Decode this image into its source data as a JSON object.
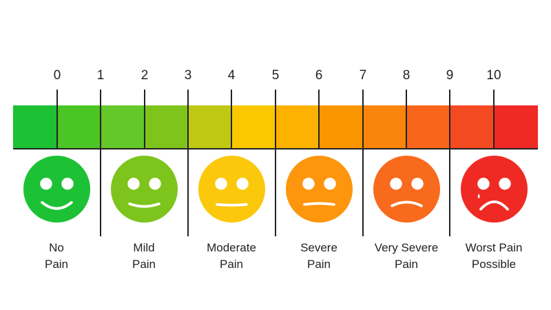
{
  "scale": {
    "ticks": [
      "0",
      "1",
      "2",
      "3",
      "4",
      "5",
      "6",
      "7",
      "8",
      "9",
      "10"
    ],
    "segment_colors": [
      "#1cc134",
      "#4bc524",
      "#64c72a",
      "#7fc41a",
      "#bfc813",
      "#fbc800",
      "#fdb100",
      "#fb9500",
      "#fb840d",
      "#f8651b",
      "#f44a21",
      "#ef2a24"
    ]
  },
  "faces": [
    {
      "id": "no-pain",
      "color": "#1dc135",
      "mood": "happy",
      "label_line1": "No",
      "label_line2": "Pain"
    },
    {
      "id": "mild-pain",
      "color": "#7dc41c",
      "mood": "smile",
      "label_line1": "Mild",
      "label_line2": "Pain"
    },
    {
      "id": "moderate-pain",
      "color": "#fbc80b",
      "mood": "neutral",
      "label_line1": "Moderate",
      "label_line2": "Pain"
    },
    {
      "id": "severe-pain",
      "color": "#fd960c",
      "mood": "neutral-down",
      "label_line1": "Severe",
      "label_line2": "Pain"
    },
    {
      "id": "very-severe-pain",
      "color": "#f86a1c",
      "mood": "sad",
      "label_line1": "Very Severe",
      "label_line2": "Pain"
    },
    {
      "id": "worst-pain-possible",
      "color": "#ef2a24",
      "mood": "crying",
      "label_line1": "Worst Pain",
      "label_line2": "Possible"
    }
  ]
}
